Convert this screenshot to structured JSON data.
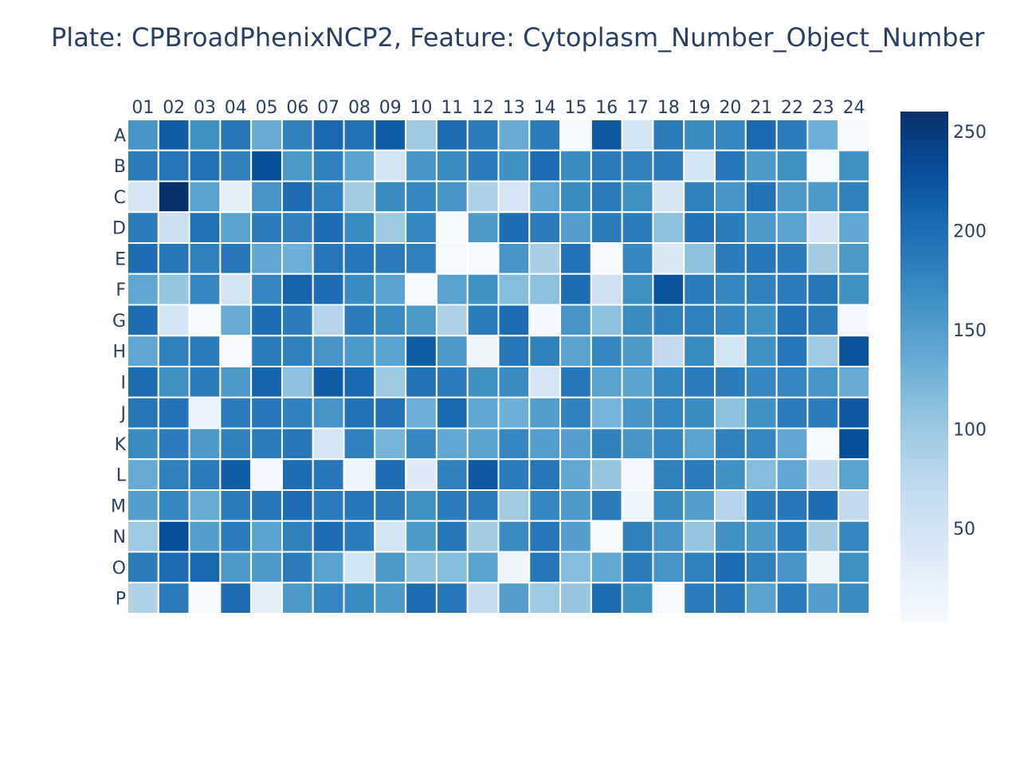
{
  "chart_data": {
    "type": "heatmap",
    "title": "Plate: CPBroadPhenixNCP2, Feature: Cytoplasm_Number_Object_Number",
    "xlabel": "",
    "ylabel": "",
    "x_categories": [
      "01",
      "02",
      "03",
      "04",
      "05",
      "06",
      "07",
      "08",
      "09",
      "10",
      "11",
      "12",
      "13",
      "14",
      "15",
      "16",
      "17",
      "18",
      "19",
      "20",
      "21",
      "22",
      "23",
      "24"
    ],
    "y_categories": [
      "A",
      "B",
      "C",
      "D",
      "E",
      "F",
      "G",
      "H",
      "I",
      "J",
      "K",
      "L",
      "M",
      "N",
      "O",
      "P"
    ],
    "values": [
      [
        160,
        215,
        165,
        190,
        135,
        180,
        205,
        195,
        215,
        100,
        200,
        185,
        135,
        185,
        5,
        220,
        50,
        185,
        170,
        175,
        205,
        185,
        130,
        5
      ],
      [
        185,
        190,
        195,
        180,
        230,
        155,
        180,
        145,
        50,
        160,
        170,
        185,
        165,
        200,
        170,
        185,
        180,
        185,
        50,
        190,
        155,
        165,
        5,
        165
      ],
      [
        45,
        260,
        145,
        30,
        160,
        200,
        180,
        95,
        170,
        175,
        160,
        85,
        45,
        140,
        170,
        185,
        165,
        45,
        180,
        160,
        195,
        155,
        155,
        180
      ],
      [
        185,
        60,
        195,
        145,
        185,
        180,
        200,
        170,
        100,
        175,
        5,
        155,
        200,
        185,
        150,
        185,
        185,
        110,
        195,
        185,
        155,
        145,
        45,
        140
      ],
      [
        200,
        190,
        180,
        190,
        140,
        130,
        190,
        190,
        185,
        180,
        5,
        5,
        160,
        90,
        195,
        5,
        175,
        40,
        110,
        185,
        190,
        185,
        95,
        155
      ],
      [
        140,
        105,
        175,
        50,
        175,
        210,
        200,
        170,
        145,
        5,
        145,
        165,
        115,
        110,
        200,
        55,
        165,
        225,
        185,
        175,
        180,
        185,
        190,
        165
      ],
      [
        200,
        50,
        5,
        135,
        200,
        185,
        80,
        185,
        170,
        155,
        85,
        185,
        200,
        10,
        160,
        110,
        170,
        180,
        180,
        175,
        165,
        195,
        185,
        10
      ],
      [
        140,
        180,
        185,
        5,
        185,
        180,
        160,
        155,
        145,
        215,
        155,
        15,
        190,
        180,
        145,
        175,
        155,
        70,
        170,
        50,
        165,
        190,
        100,
        225
      ],
      [
        200,
        165,
        185,
        155,
        210,
        110,
        215,
        205,
        100,
        195,
        185,
        165,
        170,
        45,
        190,
        145,
        145,
        175,
        185,
        185,
        175,
        175,
        160,
        135
      ],
      [
        190,
        195,
        20,
        185,
        190,
        180,
        160,
        195,
        195,
        130,
        205,
        140,
        130,
        150,
        180,
        125,
        160,
        175,
        170,
        110,
        165,
        185,
        185,
        220
      ],
      [
        170,
        185,
        155,
        180,
        185,
        190,
        45,
        180,
        125,
        175,
        140,
        145,
        175,
        150,
        150,
        180,
        160,
        175,
        145,
        180,
        175,
        140,
        5,
        230
      ],
      [
        135,
        180,
        185,
        215,
        10,
        200,
        190,
        15,
        200,
        35,
        180,
        220,
        185,
        190,
        140,
        105,
        10,
        180,
        185,
        165,
        115,
        140,
        70,
        145
      ],
      [
        150,
        175,
        135,
        185,
        190,
        200,
        185,
        190,
        185,
        165,
        185,
        185,
        95,
        175,
        155,
        185,
        15,
        170,
        150,
        80,
        185,
        190,
        200,
        70
      ],
      [
        100,
        230,
        150,
        185,
        145,
        180,
        200,
        185,
        50,
        155,
        190,
        95,
        170,
        190,
        150,
        5,
        180,
        160,
        105,
        165,
        155,
        185,
        95,
        175
      ],
      [
        185,
        200,
        205,
        155,
        155,
        185,
        145,
        50,
        155,
        110,
        115,
        145,
        15,
        190,
        115,
        140,
        185,
        160,
        180,
        200,
        180,
        160,
        15,
        165
      ],
      [
        85,
        185,
        5,
        200,
        30,
        155,
        175,
        170,
        155,
        200,
        190,
        65,
        150,
        100,
        105,
        200,
        165,
        5,
        185,
        190,
        145,
        185,
        150,
        170
      ]
    ],
    "colorscale": {
      "name": "Blues",
      "range": [
        3,
        260
      ],
      "tickvals": [
        50,
        100,
        150,
        200,
        250
      ],
      "stops": [
        "#f7fbff",
        "#deebf7",
        "#c6dbef",
        "#9ecae1",
        "#6baed6",
        "#4292c6",
        "#2171b5",
        "#08519c",
        "#08306b"
      ]
    },
    "grid": false,
    "legend": "colorbar-right"
  }
}
